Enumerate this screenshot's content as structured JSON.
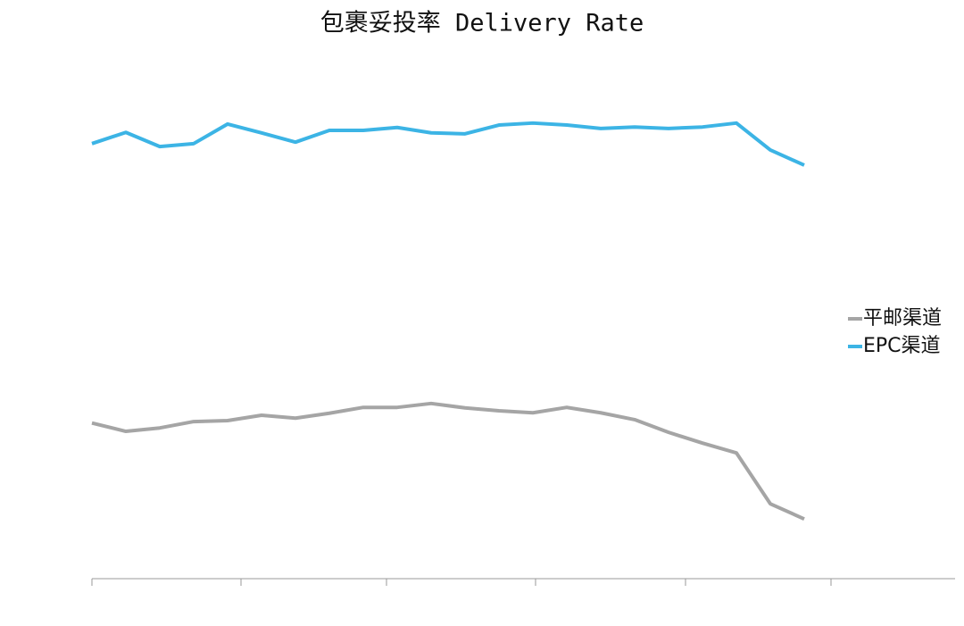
{
  "chart_data": {
    "type": "line",
    "title": "包裹妥投率 Delivery Rate",
    "categories": [
      null,
      null,
      null,
      null,
      null,
      null,
      null,
      null,
      null,
      null,
      null,
      null,
      null,
      null,
      null,
      null,
      null,
      null,
      null,
      null,
      null,
      null
    ],
    "ylim": [
      0,
      100
    ],
    "legend": "right",
    "series": [
      {
        "name": "平邮渠道",
        "color": "#a5a5a5",
        "values": [
          31.8,
          30.1,
          30.8,
          32.1,
          32.3,
          33.4,
          32.8,
          33.8,
          35.0,
          35.0,
          35.8,
          34.9,
          34.3,
          33.9,
          35.0,
          33.9,
          32.5,
          29.9,
          27.7,
          25.7,
          15.3,
          12.2
        ]
      },
      {
        "name": "EPC渠道",
        "color": "#3cb4e5",
        "values": [
          88.9,
          91.2,
          88.3,
          88.9,
          92.9,
          91.1,
          89.2,
          91.6,
          91.6,
          92.2,
          91.1,
          90.9,
          92.7,
          93.1,
          92.7,
          92.0,
          92.3,
          92.0,
          92.3,
          93.1,
          87.6,
          84.5
        ]
      }
    ]
  }
}
